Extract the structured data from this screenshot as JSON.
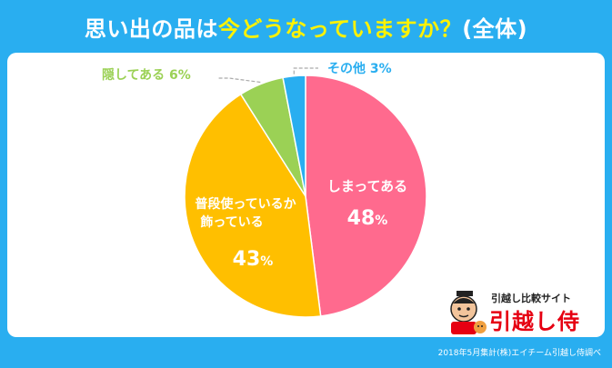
{
  "title": {
    "part1": "思い出の品は",
    "part2": "今どうなっていますか？",
    "part3": "(全体)"
  },
  "chart_data": {
    "type": "pie",
    "title": "思い出の品は今どうなっていますか？(全体)",
    "slices": [
      {
        "label": "しまってある",
        "value": 48,
        "color": "#ff6a8e"
      },
      {
        "label": "普段使っているか\n飾っている",
        "value": 43,
        "color": "#ffbf00"
      },
      {
        "label": "隠してある",
        "value": 6,
        "color": "#9bd155"
      },
      {
        "label": "その他",
        "value": 3,
        "color": "#29aef0"
      }
    ],
    "unit": "%"
  },
  "logo": {
    "subtitle": "引越し比較サイト",
    "name": "引越し侍"
  },
  "footer": "2018年5月集計(株)エイチーム引越し侍調べ"
}
